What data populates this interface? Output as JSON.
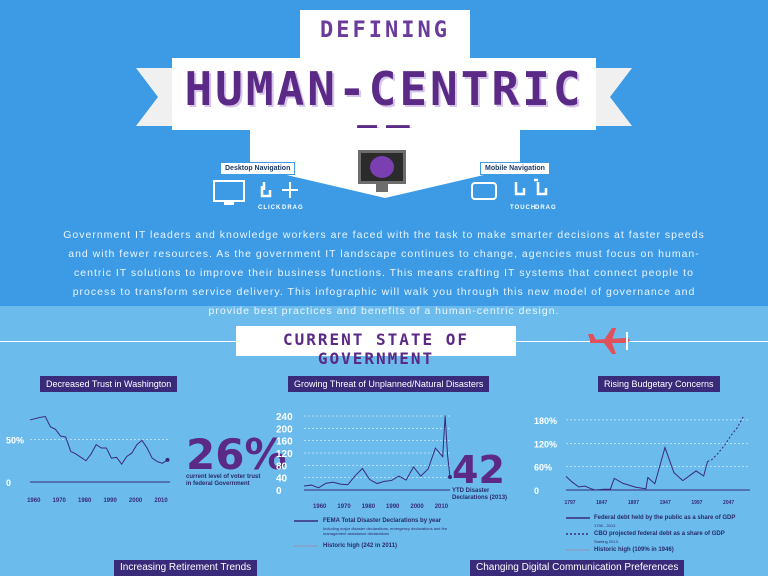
{
  "header": {
    "kicker": "DEFINING",
    "title": "HUMAN-CENTRIC IT",
    "desktop_nav_label": "Desktop Navigation",
    "mobile_nav_label": "Mobile Navigation",
    "click_label": "CLICK",
    "drag_label_1": "DRAG",
    "touch_label": "TOUCH",
    "drag_label_2": "DRAG",
    "intro": "Government IT leaders and knowledge workers are faced with the task to make smarter decisions at faster speeds and with fewer resources. As the government IT landscape continues to change, agencies must focus on human-centric IT solutions to improve their business functions. This means crafting IT systems that connect people to process to transform service delivery. This infographic will walk you through this new model of governance and provide best practices and benefits of a human-centric design."
  },
  "section": {
    "title": "CURRENT STATE OF GOVERNMENT"
  },
  "panels": {
    "trust_label": "Decreased Trust in Washington",
    "trust_big": "26%",
    "trust_caption": "current level of voter trust in federal Government",
    "disasters_label": "Growing Threat of Unplanned/Natural Disasters",
    "disasters_big": "42",
    "disasters_caption": "YTD Disaster Declarations (2013)",
    "disasters_legend_1": "FEMA Total Disaster Declarations by year",
    "disasters_legend_1_sub": "Including major disaster declarations, emergency declarations and fire management assistance declarations",
    "disasters_legend_2": "Historic high (242 in 2011)",
    "budget_label": "Rising Budgetary Concerns",
    "budget_legend_1": "Federal debt held by the public as a share of GDP",
    "budget_legend_1_sub": "1790 - 2013",
    "budget_legend_2": "CBO projected federal debt as a share of GDP",
    "budget_legend_2_sub": "Starting 2013",
    "budget_legend_3": "Historic high (109% in 1946)",
    "retirement_label": "Increasing Retirement Trends",
    "communication_label": "Changing Digital Communication Preferences"
  },
  "colors": {
    "top_bg": "#3d9be6",
    "bottom_bg": "#6bbcec",
    "purple": "#5b2a86",
    "navy": "#3a2a7a",
    "line": "#3a2a7a"
  },
  "chart_data": [
    {
      "type": "line",
      "title": "Decreased Trust in Washington",
      "xlabel": "",
      "ylabel": "",
      "x_ticks": [
        "1960",
        "1970",
        "1980",
        "1990",
        "2000",
        "2010"
      ],
      "y_ticks": [
        "0",
        "50%"
      ],
      "ylim": [
        0,
        80
      ],
      "xlim": [
        1958,
        2013
      ],
      "series": [
        {
          "x": [
            1958,
            1962,
            1964,
            1966,
            1968,
            1970,
            1972,
            1974,
            1976,
            1978,
            1980,
            1982,
            1984,
            1986,
            1988,
            1990,
            1992,
            1994,
            1996,
            1998,
            2000,
            2002,
            2004,
            2006,
            2008,
            2010,
            2012
          ],
          "values": [
            73,
            76,
            77,
            65,
            62,
            54,
            53,
            36,
            33,
            29,
            25,
            33,
            44,
            40,
            40,
            28,
            29,
            21,
            30,
            34,
            44,
            49,
            40,
            28,
            24,
            22,
            26
          ]
        }
      ]
    },
    {
      "type": "line",
      "title": "Growing Threat of Unplanned/Natural Disasters",
      "x_ticks": [
        "1960",
        "1970",
        "1980",
        "1990",
        "2000",
        "2010"
      ],
      "y_ticks": [
        "0",
        "40",
        "80",
        "120",
        "160",
        "200",
        "240"
      ],
      "ylim": [
        0,
        240
      ],
      "xlim": [
        1953,
        2013
      ],
      "series": [
        {
          "name": "FEMA Total Disaster Declarations by year",
          "x": [
            1953,
            1956,
            1959,
            1962,
            1965,
            1968,
            1971,
            1974,
            1977,
            1980,
            1983,
            1986,
            1989,
            1992,
            1995,
            1998,
            2001,
            2004,
            2007,
            2010,
            2011,
            2012,
            2013
          ],
          "values": [
            13,
            16,
            7,
            22,
            25,
            19,
            17,
            46,
            70,
            34,
            21,
            28,
            31,
            45,
            32,
            75,
            45,
            68,
            136,
            108,
            242,
            112,
            42
          ]
        }
      ]
    },
    {
      "type": "line",
      "title": "Rising Budgetary Concerns",
      "x_ticks": [
        "1797",
        "1847",
        "1897",
        "1947",
        "1997",
        "2047"
      ],
      "y_ticks": [
        "0",
        "60%",
        "120%",
        "180%"
      ],
      "ylim": [
        0,
        190
      ],
      "xlim": [
        1790,
        2080
      ],
      "series": [
        {
          "name": "Federal debt held by the public as a share of GDP",
          "x": [
            1790,
            1800,
            1810,
            1820,
            1830,
            1836,
            1850,
            1860,
            1866,
            1880,
            1900,
            1916,
            1919,
            1930,
            1946,
            1960,
            1974,
            1995,
            2007,
            2013
          ],
          "values": [
            35,
            20,
            8,
            10,
            3,
            0,
            2,
            2,
            30,
            17,
            7,
            3,
            32,
            16,
            109,
            45,
            24,
            49,
            36,
            73
          ]
        },
        {
          "name": "CBO projected federal debt as a share of GDP",
          "x": [
            2013,
            2020,
            2030,
            2040,
            2050,
            2060,
            2070
          ],
          "values": [
            73,
            78,
            95,
            115,
            140,
            160,
            190
          ]
        }
      ]
    }
  ]
}
